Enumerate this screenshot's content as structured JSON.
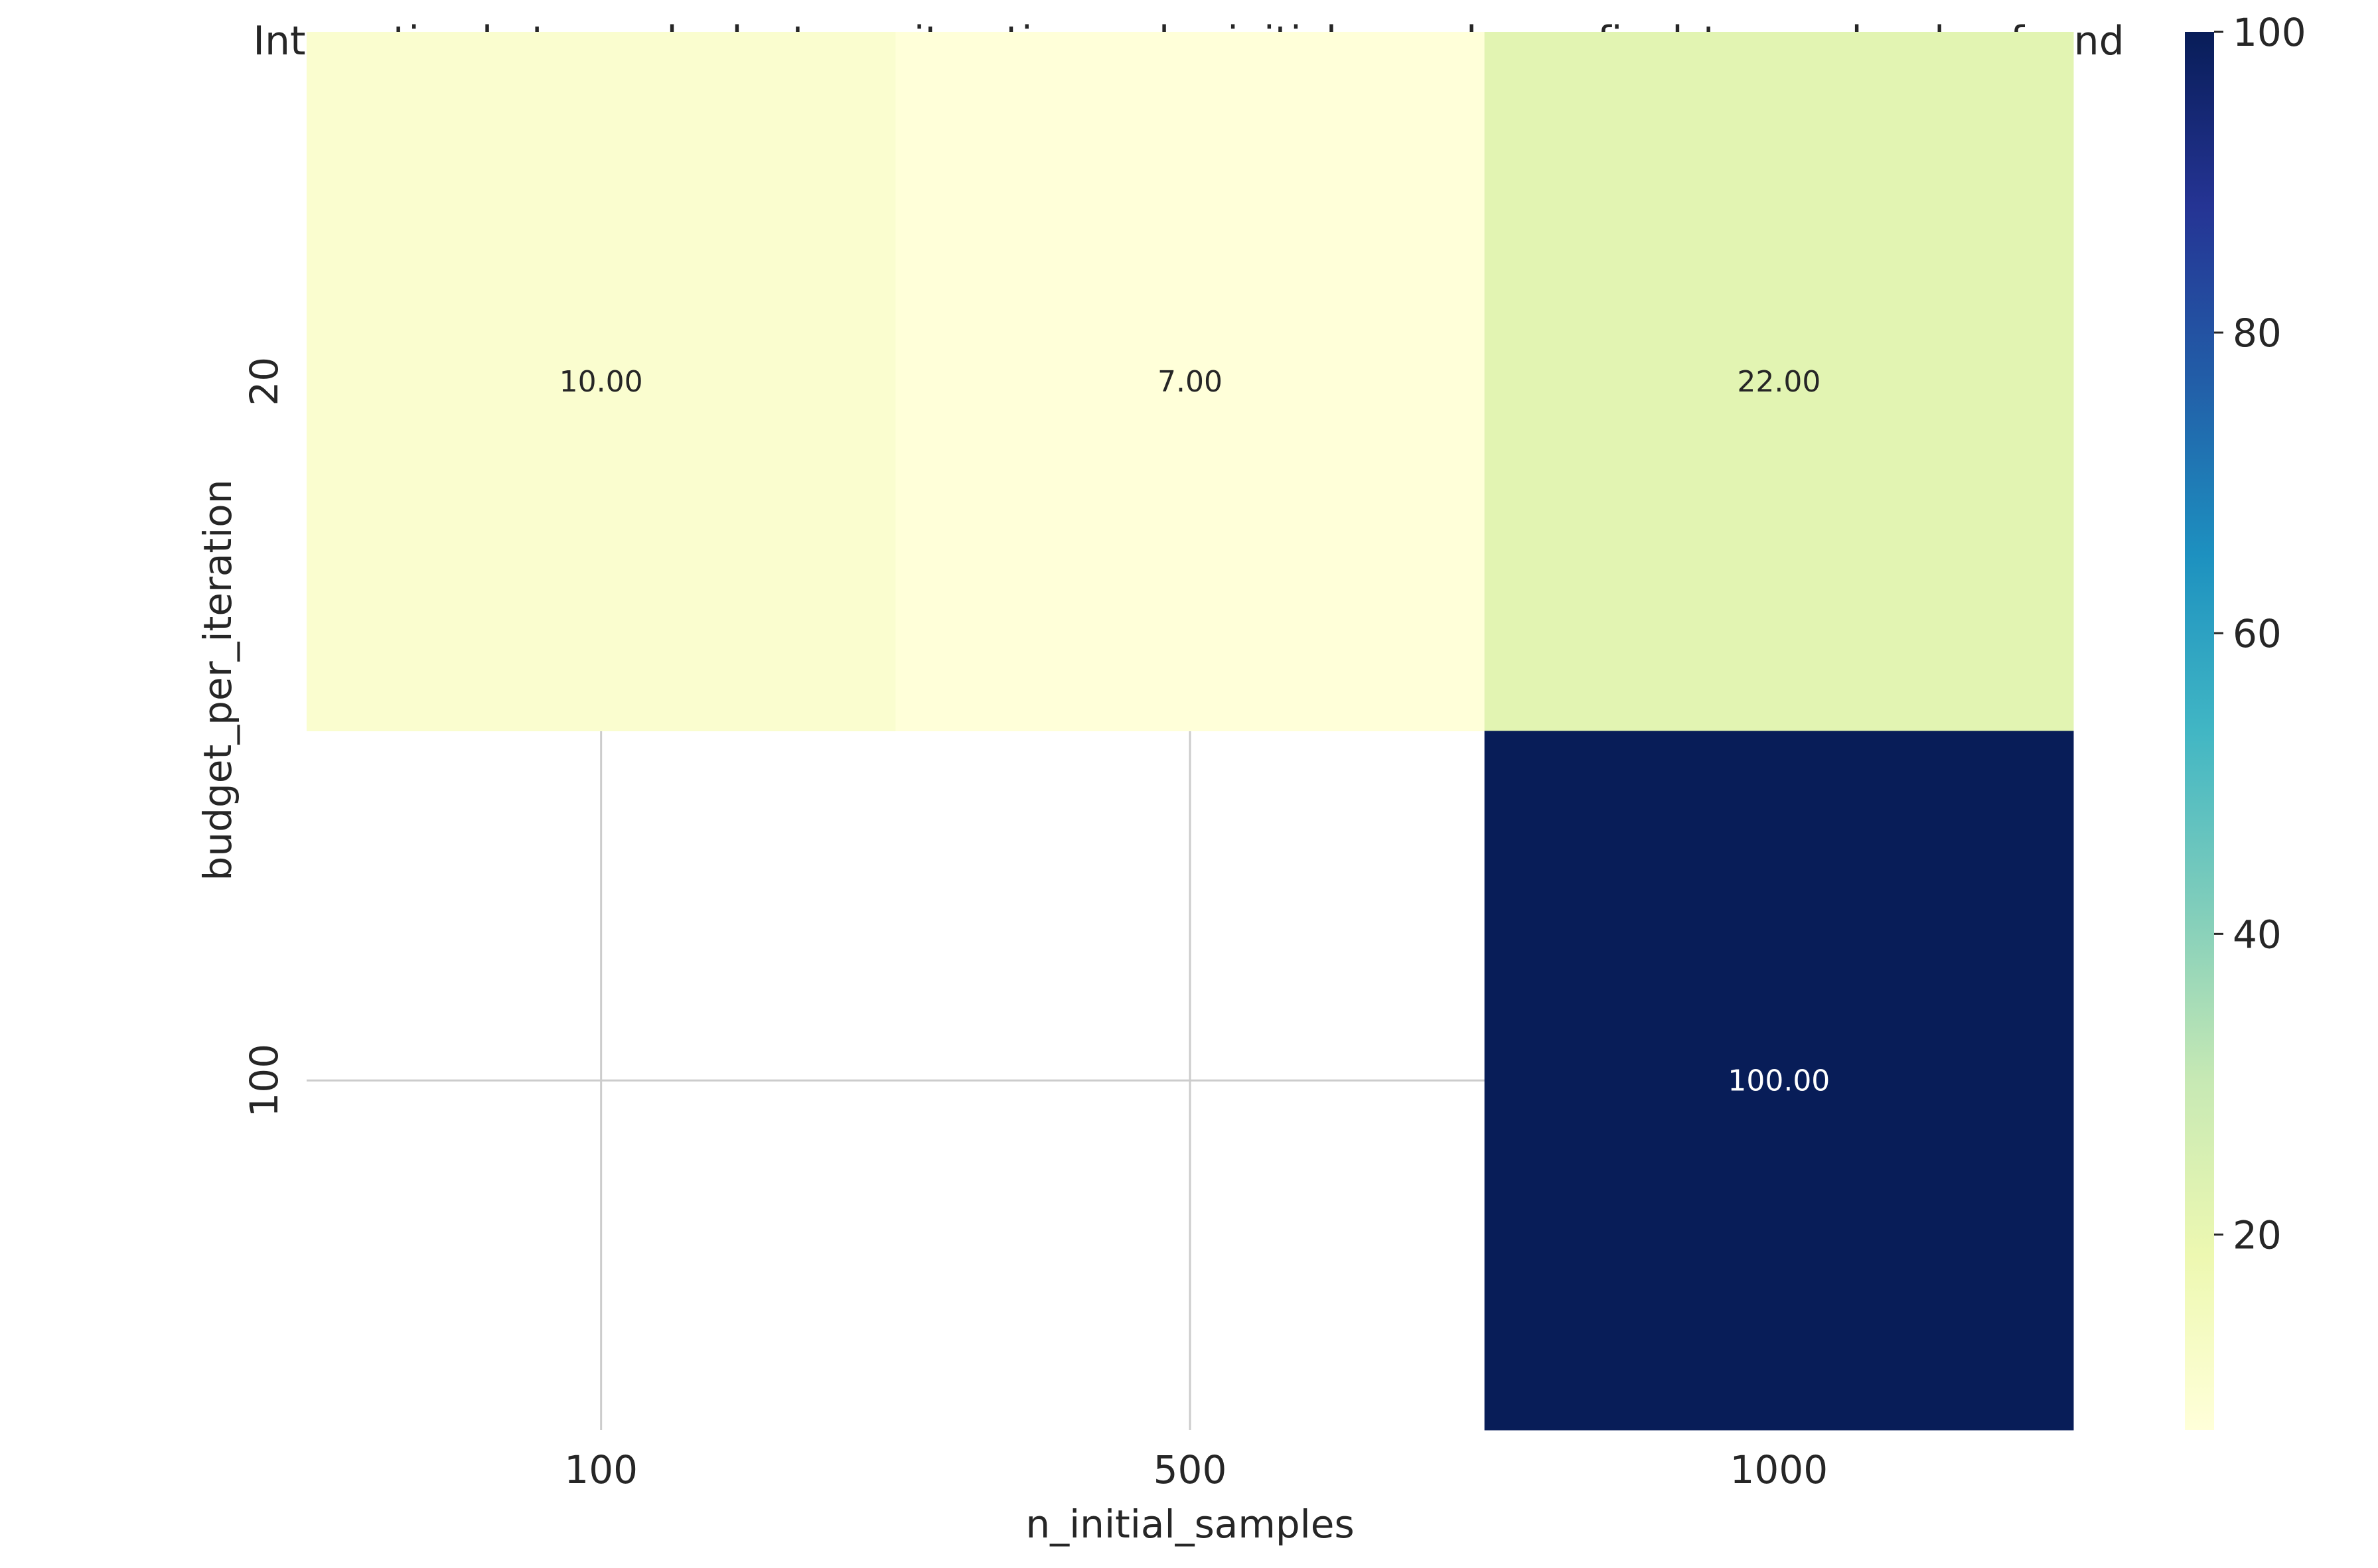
{
  "chart_data": {
    "type": "heatmap",
    "title": "Interaction between budget_per_iteration and n_initial_samples on final_top_molecules_found",
    "xlabel": "n_initial_samples",
    "ylabel": "budget_per_iteration",
    "x_categories": [
      "100",
      "500",
      "1000"
    ],
    "y_categories": [
      "20",
      "100"
    ],
    "values": [
      [
        10.0,
        7.0,
        22.0
      ],
      [
        null,
        null,
        100.0
      ]
    ],
    "cell_labels": [
      [
        "10.00",
        "7.00",
        "22.00"
      ],
      [
        "",
        "",
        "100.00"
      ]
    ],
    "colormap": "YlGnBu",
    "colorbar": {
      "range": [
        7,
        100
      ],
      "ticks": [
        20,
        40,
        60,
        80,
        100
      ],
      "tick_labels": [
        "20",
        "40",
        "60",
        "80",
        "100"
      ]
    },
    "grid": true,
    "missing_cells_shown_as": "blank"
  },
  "colors": {
    "text_dark": "#262626",
    "annot_light": "#ffffff",
    "grid": "#cccccc",
    "background": "#ffffff"
  }
}
